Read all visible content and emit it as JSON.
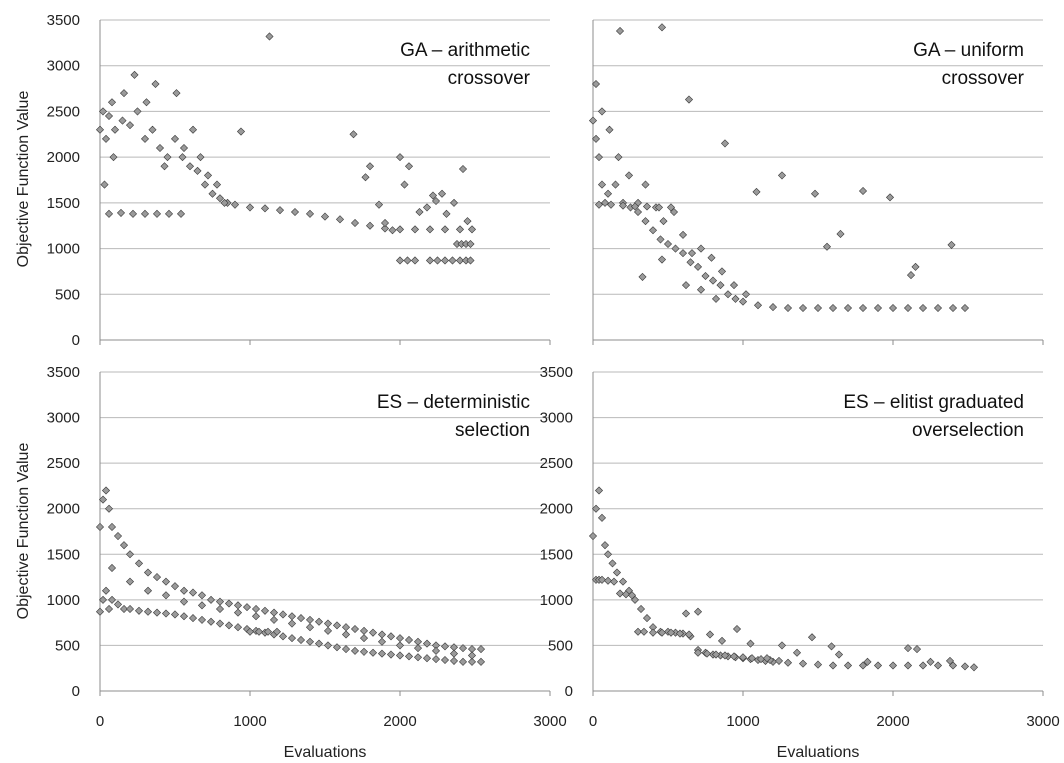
{
  "chart_data": [
    {
      "type": "scatter",
      "title_lines": [
        "GA – arithmetic",
        "crossover"
      ],
      "xlabel": "",
      "ylabel": "Objective Function Value",
      "xlim": [
        0,
        3000
      ],
      "ylim": [
        0,
        3500
      ],
      "x_ticks": [
        0,
        1000,
        2000,
        3000
      ],
      "y_ticks": [
        0,
        500,
        1000,
        1500,
        2000,
        2500,
        3000,
        3500
      ],
      "show_x_tick_labels": false,
      "show_y_tick_labels": true,
      "grid": "horizontal",
      "marker": "diamond",
      "series": [
        {
          "x": [
            0,
            20,
            40,
            60,
            80,
            100,
            150,
            200,
            250,
            300,
            350,
            400,
            450,
            500,
            550,
            600,
            650,
            700,
            750,
            800,
            850,
            900,
            1000,
            1100,
            1200,
            1300,
            1400,
            1500,
            1600,
            1700,
            1800,
            1900,
            2000,
            2100,
            2200,
            2300,
            2400,
            2480,
            30,
            90,
            160,
            230,
            310,
            370,
            430,
            510,
            560,
            620,
            670,
            720,
            780,
            830,
            60,
            140,
            220,
            300,
            380,
            460,
            540,
            940,
            1130,
            1690,
            1770,
            1800,
            1860,
            1900,
            1950,
            2000,
            2030,
            2060,
            2130,
            2180,
            2220,
            2240,
            2280,
            2310,
            2360,
            2420,
            2450,
            2000,
            2050,
            2100,
            2200,
            2250,
            2300,
            2350,
            2400,
            2440,
            2470,
            2380,
            2410,
            2440,
            2470
          ],
          "y": [
            2300,
            2500,
            2200,
            2450,
            2600,
            2300,
            2400,
            2350,
            2500,
            2200,
            2300,
            2100,
            2000,
            2200,
            2000,
            1900,
            1850,
            1700,
            1600,
            1550,
            1500,
            1480,
            1450,
            1440,
            1420,
            1400,
            1380,
            1350,
            1320,
            1280,
            1250,
            1220,
            1210,
            1210,
            1210,
            1210,
            1210,
            1210,
            1700,
            2000,
            2700,
            2900,
            2600,
            2800,
            1900,
            2700,
            2100,
            2300,
            2000,
            1800,
            1700,
            1500,
            1380,
            1390,
            1380,
            1380,
            1380,
            1380,
            1380,
            2280,
            3320,
            2250,
            1780,
            1900,
            1480,
            1280,
            1200,
            2000,
            1700,
            1900,
            1400,
            1450,
            1580,
            1520,
            1600,
            1380,
            1500,
            1870,
            1300,
            870,
            870,
            870,
            870,
            870,
            870,
            870,
            870,
            870,
            870,
            1050,
            1050,
            1050,
            1050
          ]
        }
      ]
    },
    {
      "type": "scatter",
      "title_lines": [
        "GA – uniform",
        "crossover"
      ],
      "xlabel": "",
      "ylabel": "",
      "xlim": [
        0,
        3000
      ],
      "ylim": [
        0,
        3500
      ],
      "x_ticks": [
        0,
        1000,
        2000,
        3000
      ],
      "y_ticks": [
        0,
        500,
        1000,
        1500,
        2000,
        2500,
        3000,
        3500
      ],
      "show_x_tick_labels": false,
      "show_y_tick_labels": false,
      "grid": "horizontal",
      "marker": "diamond",
      "series": [
        {
          "x": [
            0,
            20,
            40,
            60,
            80,
            100,
            150,
            200,
            250,
            300,
            350,
            400,
            450,
            500,
            550,
            600,
            650,
            700,
            750,
            800,
            850,
            900,
            950,
            1000,
            1100,
            1200,
            1300,
            1400,
            1500,
            1600,
            1700,
            1800,
            1900,
            2000,
            2100,
            2200,
            2300,
            2400,
            2480,
            20,
            60,
            110,
            170,
            240,
            300,
            350,
            420,
            470,
            540,
            600,
            660,
            720,
            790,
            860,
            940,
            1020,
            40,
            120,
            200,
            280,
            360,
            440,
            520,
            180,
            460,
            640,
            880,
            1090,
            1260,
            1480,
            1560,
            1650,
            1800,
            1980,
            2120,
            2150,
            2390,
            330,
            460,
            620,
            720,
            820
          ],
          "y": [
            2400,
            2200,
            2000,
            1700,
            1500,
            1600,
            1700,
            1500,
            1450,
            1400,
            1300,
            1200,
            1100,
            1050,
            1000,
            950,
            850,
            800,
            700,
            650,
            600,
            500,
            450,
            420,
            380,
            360,
            350,
            350,
            350,
            350,
            350,
            350,
            350,
            350,
            350,
            350,
            350,
            350,
            350,
            2800,
            2500,
            2300,
            2000,
            1800,
            1500,
            1700,
            1450,
            1300,
            1400,
            1150,
            950,
            1000,
            900,
            750,
            600,
            500,
            1480,
            1480,
            1470,
            1460,
            1460,
            1450,
            1450,
            3380,
            3420,
            2630,
            2150,
            1620,
            1800,
            1600,
            1020,
            1160,
            1630,
            1560,
            710,
            800,
            1040,
            690,
            880,
            600,
            550,
            450
          ]
        }
      ]
    },
    {
      "type": "scatter",
      "title_lines": [
        "ES – deterministic",
        "selection"
      ],
      "xlabel": "Evaluations",
      "ylabel": "Objective Function Value",
      "xlim": [
        0,
        3000
      ],
      "ylim": [
        0,
        3500
      ],
      "x_ticks": [
        0,
        1000,
        2000,
        3000
      ],
      "y_ticks": [
        0,
        500,
        1000,
        1500,
        2000,
        2500,
        3000,
        3500
      ],
      "show_x_tick_labels": true,
      "show_y_tick_labels": true,
      "grid": "horizontal",
      "marker": "diamond",
      "series": [
        {
          "x": [
            0,
            20,
            40,
            60,
            80,
            120,
            160,
            200,
            260,
            320,
            380,
            440,
            500,
            560,
            620,
            680,
            740,
            800,
            860,
            920,
            980,
            1040,
            1100,
            1160,
            1220,
            1280,
            1340,
            1400,
            1460,
            1520,
            1580,
            1640,
            1700,
            1760,
            1820,
            1880,
            1940,
            2000,
            2060,
            2120,
            2180,
            2240,
            2300,
            2360,
            2420,
            2480,
            2540,
            0,
            20,
            40,
            60,
            80,
            120,
            160,
            200,
            260,
            320,
            380,
            440,
            500,
            560,
            620,
            680,
            740,
            800,
            860,
            920,
            980,
            1040,
            1100,
            1160,
            1220,
            1280,
            1340,
            1400,
            1460,
            1520,
            1580,
            1640,
            1700,
            1760,
            1820,
            1880,
            1940,
            2000,
            2060,
            2120,
            2180,
            2240,
            2300,
            2360,
            2420,
            2480,
            2540,
            80,
            200,
            320,
            440,
            560,
            680,
            800,
            920,
            1040,
            1160,
            1280,
            1400,
            1520,
            1640,
            1760,
            1880,
            2000,
            2120,
            2240,
            2360,
            2480,
            1000,
            1060,
            1120,
            1180
          ],
          "y": [
            1800,
            2100,
            2200,
            2000,
            1800,
            1700,
            1600,
            1500,
            1400,
            1300,
            1250,
            1200,
            1150,
            1100,
            1080,
            1050,
            1000,
            980,
            960,
            940,
            920,
            900,
            880,
            860,
            840,
            820,
            800,
            780,
            760,
            740,
            720,
            700,
            680,
            660,
            640,
            620,
            600,
            580,
            560,
            540,
            520,
            500,
            490,
            480,
            470,
            460,
            460,
            870,
            1000,
            1100,
            900,
            1000,
            950,
            900,
            900,
            880,
            870,
            860,
            850,
            840,
            820,
            800,
            780,
            760,
            740,
            720,
            700,
            680,
            660,
            640,
            620,
            600,
            580,
            560,
            540,
            520,
            500,
            480,
            460,
            440,
            430,
            420,
            410,
            400,
            390,
            380,
            370,
            360,
            350,
            340,
            330,
            320,
            320,
            320,
            1350,
            1200,
            1100,
            1050,
            980,
            940,
            900,
            860,
            820,
            780,
            740,
            700,
            660,
            620,
            580,
            540,
            500,
            470,
            440,
            410,
            390,
            650,
            650,
            650,
            650
          ]
        }
      ]
    },
    {
      "type": "scatter",
      "title_lines": [
        "ES – elitist graduated",
        "overselection"
      ],
      "xlabel": "Evaluations",
      "ylabel": "",
      "xlim": [
        0,
        3000
      ],
      "ylim": [
        0,
        3500
      ],
      "x_ticks": [
        0,
        1000,
        2000,
        3000
      ],
      "y_ticks": [
        0,
        500,
        1000,
        1500,
        2000,
        2500,
        3000,
        3500
      ],
      "show_x_tick_labels": true,
      "show_y_tick_labels": true,
      "grid": "horizontal",
      "marker": "diamond",
      "series": [
        {
          "x": [
            0,
            20,
            40,
            60,
            80,
            100,
            130,
            160,
            200,
            240,
            280,
            320,
            360,
            400,
            450,
            500,
            550,
            600,
            650,
            700,
            750,
            800,
            850,
            900,
            950,
            1000,
            1050,
            1100,
            1150,
            1200,
            1300,
            1400,
            1500,
            1600,
            1700,
            1800,
            1900,
            2000,
            2100,
            2200,
            2300,
            2400,
            2480,
            2540,
            20,
            40,
            60,
            100,
            140,
            180,
            220,
            260,
            300,
            340,
            400,
            460,
            520,
            580,
            640,
            700,
            760,
            820,
            880,
            940,
            1000,
            1060,
            1120,
            1180,
            1240,
            620,
            700,
            780,
            860,
            960,
            1050,
            1160,
            1260,
            1360,
            1460,
            1590,
            1640,
            1830,
            2100,
            2160,
            2250,
            2380
          ],
          "y": [
            1700,
            2000,
            2200,
            1900,
            1600,
            1500,
            1400,
            1300,
            1200,
            1100,
            1000,
            900,
            800,
            700,
            650,
            650,
            640,
            630,
            600,
            450,
            420,
            400,
            390,
            380,
            370,
            360,
            350,
            340,
            330,
            320,
            310,
            300,
            290,
            280,
            280,
            280,
            280,
            280,
            280,
            280,
            280,
            280,
            270,
            260,
            1220,
            1220,
            1220,
            1210,
            1200,
            1070,
            1060,
            1050,
            650,
            650,
            640,
            640,
            640,
            630,
            620,
            420,
            410,
            400,
            390,
            380,
            370,
            360,
            350,
            340,
            330,
            850,
            870,
            620,
            550,
            680,
            520,
            360,
            500,
            420,
            590,
            490,
            400,
            320,
            470,
            460,
            320,
            330
          ]
        }
      ]
    }
  ]
}
